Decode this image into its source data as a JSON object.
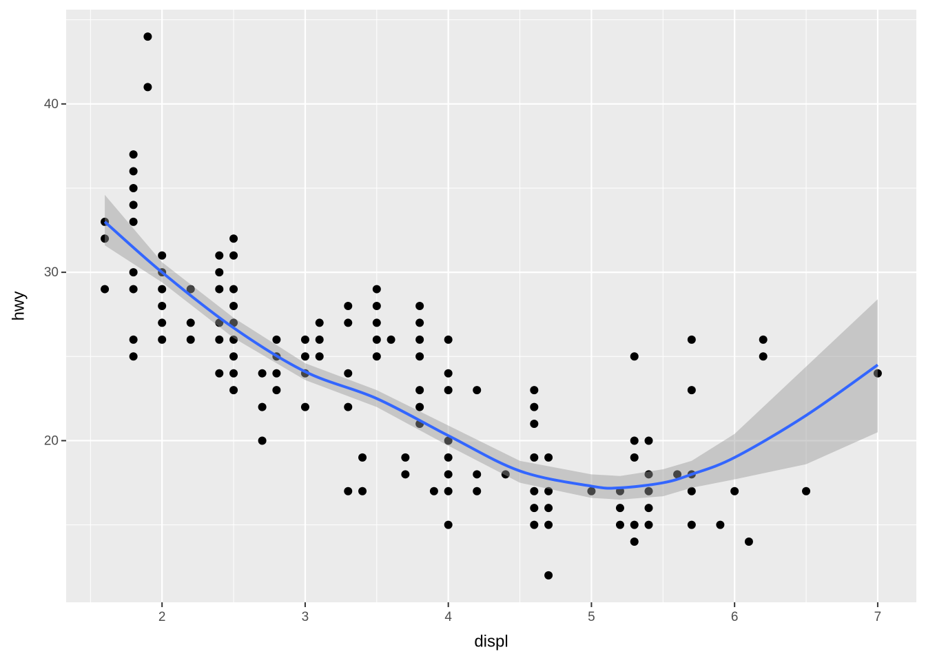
{
  "chart_data": [
    {
      "type": "scatter",
      "x_label": "displ",
      "y_label": "hwy",
      "xlim": [
        1.33,
        7.27
      ],
      "ylim": [
        10.4,
        45.6
      ],
      "xticks": [
        2,
        3,
        4,
        5,
        6,
        7
      ],
      "yticks": [
        20,
        30,
        40
      ],
      "x_minor_breaks": [
        1.5,
        2.5,
        3.5,
        4.5,
        5.5,
        6.5
      ],
      "y_minor_breaks": [
        15,
        25,
        35,
        45
      ],
      "grid": true,
      "color": "#000000",
      "x": [
        1.6,
        1.6,
        1.6,
        1.8,
        1.8,
        1.8,
        1.8,
        1.8,
        1.8,
        1.8,
        1.8,
        1.8,
        1.9,
        1.9,
        2,
        2,
        2,
        2,
        2,
        2,
        2.2,
        2.2,
        2.2,
        2.4,
        2.4,
        2.4,
        2.4,
        2.4,
        2.4,
        2.5,
        2.5,
        2.5,
        2.5,
        2.5,
        2.5,
        2.5,
        2.5,
        2.5,
        2.7,
        2.7,
        2.7,
        2.8,
        2.8,
        2.8,
        2.8,
        3,
        3,
        3,
        3,
        3.1,
        3.1,
        3.1,
        3.3,
        3.3,
        3.3,
        3.3,
        3.3,
        3.4,
        3.4,
        3.5,
        3.5,
        3.5,
        3.5,
        3.5,
        3.6,
        3.7,
        3.7,
        3.8,
        3.8,
        3.8,
        3.8,
        3.8,
        3.8,
        3.8,
        3.9,
        4,
        4,
        4,
        4,
        4,
        4,
        4,
        4,
        4.2,
        4.2,
        4.2,
        4.4,
        4.6,
        4.6,
        4.6,
        4.6,
        4.6,
        4.6,
        4.6,
        4.7,
        4.7,
        4.7,
        4.7,
        4.7,
        5,
        5.2,
        5.2,
        5.2,
        5.3,
        5.3,
        5.3,
        5.3,
        5.3,
        5.4,
        5.4,
        5.4,
        5.4,
        5.4,
        5.6,
        5.7,
        5.7,
        5.7,
        5.7,
        5.7,
        5.9,
        6,
        6.1,
        6.2,
        6.2,
        6.5,
        7
      ],
      "values": [
        33,
        32,
        29,
        37,
        36,
        35,
        34,
        33,
        30,
        29,
        26,
        25,
        44,
        41,
        31,
        30,
        29,
        28,
        27,
        26,
        29,
        27,
        26,
        31,
        30,
        29,
        27,
        26,
        24,
        32,
        31,
        29,
        28,
        27,
        26,
        25,
        24,
        23,
        24,
        22,
        20,
        26,
        25,
        24,
        23,
        26,
        25,
        24,
        22,
        27,
        26,
        25,
        28,
        27,
        24,
        22,
        17,
        19,
        17,
        29,
        28,
        27,
        26,
        25,
        26,
        19,
        18,
        28,
        27,
        26,
        25,
        23,
        22,
        21,
        17,
        26,
        24,
        23,
        20,
        19,
        18,
        17,
        15,
        23,
        18,
        17,
        18,
        23,
        22,
        21,
        19,
        17,
        16,
        15,
        19,
        17,
        16,
        15,
        12,
        17,
        17,
        16,
        15,
        25,
        20,
        19,
        15,
        14,
        20,
        18,
        17,
        16,
        15,
        18,
        26,
        23,
        18,
        17,
        15,
        15,
        17,
        14,
        26,
        25,
        17,
        24
      ]
    },
    {
      "type": "smooth",
      "color": "#3366FF",
      "band_color": "#999999",
      "x": [
        1.6,
        2,
        2.5,
        3,
        3.5,
        4,
        4.5,
        5,
        5.2,
        5.5,
        5.7,
        6,
        6.5,
        7
      ],
      "values": [
        33.0,
        30.0,
        26.7,
        24.1,
        22.5,
        20.3,
        18.2,
        17.3,
        17.2,
        17.5,
        18.0,
        19.0,
        21.5,
        24.5
      ],
      "lower": [
        31.6,
        29.4,
        26.1,
        23.6,
        22.0,
        19.7,
        17.5,
        16.6,
        16.5,
        16.7,
        17.2,
        17.7,
        18.6,
        20.5
      ],
      "upper": [
        34.6,
        30.6,
        27.3,
        24.6,
        23.0,
        20.9,
        18.8,
        18.0,
        17.9,
        18.3,
        18.8,
        20.4,
        24.4,
        28.4
      ]
    }
  ]
}
